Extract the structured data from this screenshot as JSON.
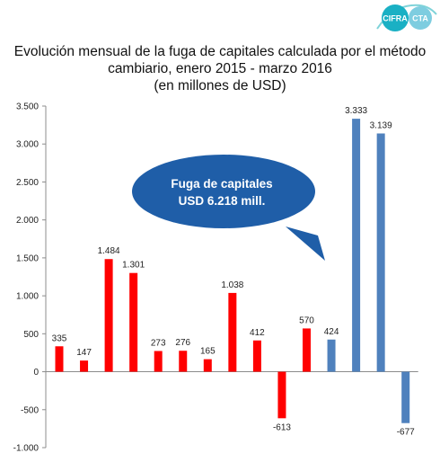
{
  "logo": {
    "left_text": "CIFRA",
    "right_text": "CTA"
  },
  "chart_data": {
    "type": "bar",
    "title": [
      "Evolución mensual de la fuga de capitales calculada por el método",
      "cambiario, enero 2015 - marzo 2016",
      "(en millones de USD)"
    ],
    "xlabel": "",
    "ylabel": "",
    "ylim": [
      -1000,
      3500
    ],
    "yticks": [
      3500,
      3000,
      2500,
      2000,
      1500,
      1000,
      500,
      0,
      -500,
      -1000
    ],
    "ytick_labels": [
      "3.500",
      "3.000",
      "2.500",
      "2.000",
      "1.500",
      "1.000",
      "500",
      "0",
      "-500",
      "-1.000"
    ],
    "grid": false,
    "legend": "none",
    "values": [
      335,
      147,
      1484,
      1301,
      273,
      276,
      165,
      1038,
      412,
      -613,
      570,
      424,
      3333,
      3139,
      -677
    ],
    "data_labels": [
      "335",
      "147",
      "1.484",
      "1.301",
      "273",
      "276",
      "165",
      "1.038",
      "412",
      "-613",
      "570",
      "424",
      "3.333",
      "3.139",
      "-677"
    ],
    "colors": [
      "#ff0000",
      "#ff0000",
      "#ff0000",
      "#ff0000",
      "#ff0000",
      "#ff0000",
      "#ff0000",
      "#ff0000",
      "#ff0000",
      "#ff0000",
      "#ff0000",
      "#4f81bd",
      "#4f81bd",
      "#4f81bd",
      "#4f81bd"
    ],
    "annotation": {
      "lines": [
        "Fuga de capitales",
        "USD 6.218 mill."
      ],
      "color": "#1f5ea8"
    }
  }
}
